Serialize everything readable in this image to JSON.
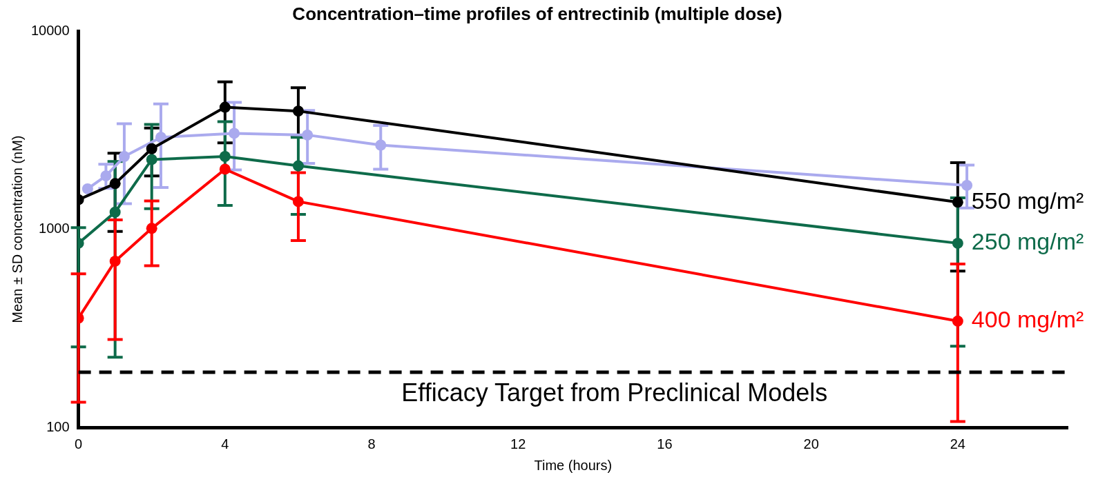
{
  "chart_data": {
    "type": "line",
    "title": "Concentration–time profiles of entrectinib (multiple dose)",
    "xlabel": "Time (hours)",
    "ylabel": "Mean ± SD concentration (nM)",
    "xlim": [
      0,
      27
    ],
    "xticks": [
      0,
      4,
      8,
      12,
      16,
      20,
      24
    ],
    "ylim": [
      100,
      10000
    ],
    "yticks": [
      100,
      1000,
      10000
    ],
    "log": "y",
    "grid": false,
    "legend": false,
    "marker": "circle",
    "line_style": "solid",
    "series": [
      {
        "name": "550 mg/m²",
        "color": "#000000",
        "x": [
          0,
          1,
          2,
          4,
          6,
          24
        ],
        "values": [
          1410,
          1700,
          2550,
          4130,
          3950,
          1370
        ],
        "errors": [
          null,
          [
            975,
            2420
          ],
          [
            1860,
            3240
          ],
          [
            2730,
            5550
          ],
          [
            2960,
            5180
          ],
          [
            615,
            2170
          ]
        ]
      },
      {
        "name": "250 mg/m²",
        "color": "#0e6b4a",
        "x": [
          0,
          1,
          2,
          4,
          6,
          24
        ],
        "values": [
          850,
          1220,
          2250,
          2330,
          2090,
          850
        ],
        "errors": [
          [
            255,
            1020
          ],
          [
            226,
            2200
          ],
          [
            1270,
            3380
          ],
          [
            1320,
            3490
          ],
          [
            1190,
            2910
          ],
          [
            257,
            1440
          ]
        ]
      },
      {
        "name": "400 mg/m²",
        "color": "#ff0000",
        "x": [
          0,
          1,
          2,
          4,
          6,
          24
        ],
        "values": [
          356,
          690,
          1010,
          2010,
          1380,
          344
        ],
        "errors": [
          [
            134,
            596
          ],
          [
            278,
            1115
          ],
          [
            654,
            1390
          ],
          null,
          [
            877,
            1930
          ],
          [
            107,
            668
          ]
        ]
      },
      {
        "color": "#aaaaee",
        "x": [
          0.25,
          0.75,
          1.25,
          2.25,
          4.25,
          6.25,
          8.25,
          24.25
        ],
        "values": [
          1600,
          1860,
          2330,
          2910,
          3050,
          2990,
          2660,
          1665
        ],
        "errors": [
          null,
          [
            1610,
            2130
          ],
          [
            1345,
            3410
          ],
          [
            1625,
            4290
          ],
          [
            1995,
            4370
          ],
          [
            2150,
            3980
          ],
          [
            2010,
            3340
          ],
          [
            1280,
            2110
          ]
        ]
      }
    ],
    "ref_lines": [
      {
        "axis": "y",
        "value": 190,
        "label": "Efficacy Target from Preclinical Models",
        "color": "#000000",
        "line_style": "dashed"
      }
    ]
  }
}
